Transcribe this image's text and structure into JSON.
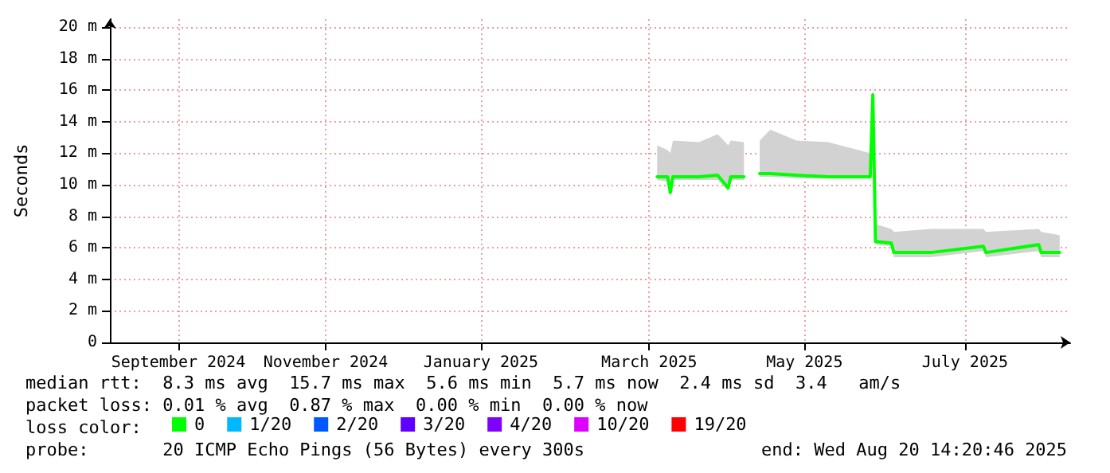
{
  "chart_data": {
    "type": "line",
    "ylabel": "Seconds",
    "legend_title": "loss color:",
    "legend": "bottom",
    "grid": true,
    "marker": "none",
    "line_style": "solid",
    "x": [
      "2025-03-16",
      "2025-03-20",
      "2025-03-21",
      "2025-03-22",
      "2025-04-01",
      "2025-04-08",
      "2025-04-12",
      "2025-04-13",
      "2025-04-18",
      "2025-04-21",
      "2025-04-24",
      "2025-04-28",
      "2025-05-08",
      "2025-05-20",
      "2025-06-05",
      "2025-06-06",
      "2025-06-07",
      "2025-06-13",
      "2025-06-14",
      "2025-06-28",
      "2025-07-18",
      "2025-07-19",
      "2025-08-08",
      "2025-08-09",
      "2025-08-16"
    ],
    "series": [
      {
        "name": "0",
        "color": "#00ff00",
        "values": [
          10.5,
          10.5,
          9.5,
          10.5,
          10.5,
          10.6,
          9.8,
          10.5,
          10.5,
          null,
          10.7,
          10.7,
          10.6,
          10.5,
          10.5,
          15.7,
          6.4,
          6.3,
          5.7,
          5.7,
          6.1,
          5.7,
          6.2,
          5.7,
          5.7
        ],
        "lower": [
          10.3,
          10.2,
          9.2,
          10.3,
          10.3,
          10.3,
          9.6,
          10.3,
          10.3,
          null,
          10.5,
          10.5,
          10.4,
          10.4,
          10.4,
          15.5,
          6.2,
          6.1,
          5.4,
          5.4,
          5.8,
          5.4,
          5.8,
          5.4,
          5.4
        ],
        "upper": [
          12.5,
          12.2,
          12.0,
          12.8,
          12.7,
          13.2,
          12.5,
          12.8,
          12.7,
          null,
          12.8,
          13.5,
          12.8,
          12.7,
          12.0,
          16.5,
          7.5,
          7.2,
          7.0,
          7.2,
          7.2,
          7.0,
          7.2,
          7.0,
          6.8
        ]
      },
      {
        "name": "1/20",
        "color": "#00b8ff",
        "values": [
          null,
          null,
          null,
          null,
          null,
          null,
          null,
          null,
          null,
          null,
          null,
          null,
          null,
          null,
          null,
          null,
          null,
          null,
          null,
          null,
          null,
          null,
          null,
          null,
          null
        ]
      },
      {
        "name": "2/20",
        "color": "#0059ff",
        "values": [
          null,
          null,
          null,
          null,
          null,
          null,
          null,
          null,
          null,
          null,
          null,
          null,
          null,
          null,
          null,
          null,
          null,
          null,
          null,
          null,
          null,
          null,
          null,
          null,
          null
        ]
      },
      {
        "name": "3/20",
        "color": "#5e00ff",
        "values": [
          null,
          null,
          null,
          null,
          null,
          null,
          null,
          null,
          null,
          null,
          null,
          null,
          null,
          null,
          null,
          null,
          null,
          null,
          null,
          null,
          null,
          null,
          null,
          null,
          null
        ]
      },
      {
        "name": "4/20",
        "color": "#7e00ff",
        "values": [
          null,
          null,
          null,
          null,
          null,
          null,
          null,
          null,
          null,
          null,
          null,
          null,
          null,
          null,
          null,
          null,
          null,
          null,
          null,
          null,
          null,
          null,
          null,
          null,
          null
        ]
      },
      {
        "name": "10/20",
        "color": "#dd00ff",
        "values": [
          null,
          null,
          null,
          null,
          null,
          null,
          null,
          null,
          null,
          null,
          null,
          null,
          null,
          null,
          null,
          null,
          null,
          null,
          null,
          null,
          null,
          null,
          null,
          null,
          null
        ]
      },
      {
        "name": "19/20",
        "color": "#ff0000",
        "values": [
          null,
          null,
          null,
          null,
          null,
          null,
          null,
          null,
          null,
          null,
          null,
          null,
          null,
          null,
          null,
          null,
          null,
          null,
          null,
          null,
          null,
          null,
          null,
          null,
          null
        ]
      }
    ],
    "xlim": [
      "2024-08-20",
      "2025-08-20"
    ],
    "xticks": [
      {
        "value": "2024-09-15",
        "label": "September 2024"
      },
      {
        "value": "2024-11-10",
        "label": "November 2024"
      },
      {
        "value": "2025-01-08",
        "label": "January 2025"
      },
      {
        "value": "2025-03-13",
        "label": "March 2025"
      },
      {
        "value": "2025-05-11",
        "label": "May 2025"
      },
      {
        "value": "2025-07-11",
        "label": "July 2025"
      }
    ],
    "ylim": [
      0,
      20.5
    ],
    "yticks": [
      0,
      {
        "value": 2,
        "label": "2 m"
      },
      {
        "value": 4,
        "label": "4 m"
      },
      {
        "value": 6,
        "label": "6 m"
      },
      {
        "value": 8,
        "label": "8 m"
      },
      {
        "value": 10,
        "label": "10 m"
      },
      {
        "value": 12,
        "label": "12 m"
      },
      {
        "value": 14,
        "label": "14 m"
      },
      {
        "value": 16,
        "label": "16 m"
      },
      {
        "value": 18,
        "label": "18 m"
      },
      {
        "value": 20,
        "label": "20 m"
      }
    ],
    "annotations": [
      "median rtt:  8.3 ms avg  15.7 ms max  5.6 ms min  5.7 ms now  2.4 ms sd  3.4   am/s",
      "packet loss: 0.01 % avg  0.87 % max  0.00 % min  0.00 % now",
      "probe:       20 ICMP Echo Pings (56 Bytes) every 300s",
      "end: Wed Aug 20 14:20:46 2025"
    ]
  }
}
